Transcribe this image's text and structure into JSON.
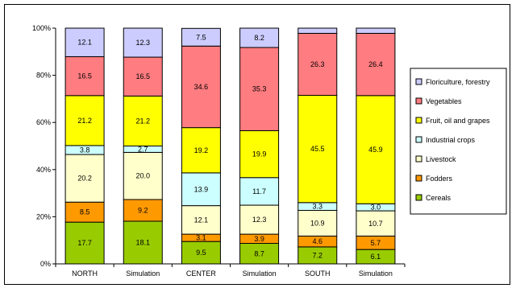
{
  "chart_data": {
    "type": "bar",
    "stacked": "percent",
    "categories": [
      "NORTH",
      "Simulation",
      "CENTER",
      "Simulation",
      "SOUTH",
      "Simulation"
    ],
    "series": [
      {
        "name": "Cereals",
        "color": "#99cc00",
        "values": [
          17.7,
          18.1,
          9.5,
          8.7,
          7.2,
          6.1
        ],
        "labels": [
          "17.7",
          "18.1",
          "9.5",
          "8.7",
          "7.2",
          "6.1"
        ]
      },
      {
        "name": "Fodders",
        "color": "#ff9900",
        "values": [
          8.5,
          9.2,
          3.1,
          3.9,
          4.6,
          5.7
        ],
        "labels": [
          "8.5",
          "9.2",
          "3.1",
          "3.9",
          "4.6",
          "5.7"
        ]
      },
      {
        "name": "Livestock",
        "color": "#ffffcc",
        "values": [
          20.2,
          20.0,
          12.1,
          12.3,
          10.9,
          10.7
        ],
        "labels": [
          "20.2",
          "20.0",
          "12.1",
          "12.3",
          "10.9",
          "10.7"
        ]
      },
      {
        "name": "Industrial crops",
        "color": "#ccffff",
        "values": [
          3.8,
          2.7,
          13.9,
          11.7,
          3.3,
          3.0
        ],
        "labels": [
          "3.8",
          "2.7",
          "13.9",
          "11.7",
          "3.3",
          "3.0"
        ]
      },
      {
        "name": "Fruit, oil and grapes",
        "color": "#ffff00",
        "values": [
          21.2,
          21.2,
          19.2,
          19.9,
          45.5,
          45.9
        ],
        "labels": [
          "21.2",
          "21.2",
          "19.2",
          "19.9",
          "45.5",
          "45.9"
        ]
      },
      {
        "name": "Vegetables",
        "color": "#ff7c80",
        "values": [
          16.5,
          16.5,
          34.6,
          35.3,
          26.3,
          26.4
        ],
        "labels": [
          "16.5",
          "16.5",
          "34.6",
          "35.3",
          "26.3",
          "26.4"
        ]
      },
      {
        "name": "Floriculture, forestry",
        "color": "#ccccff",
        "values": [
          12.1,
          12.3,
          7.5,
          8.2,
          2.2,
          2.2
        ],
        "labels": [
          "12.1",
          "12.3",
          "7.5",
          "8.2",
          "",
          ""
        ]
      }
    ],
    "y_ticks": [
      "0%",
      "20%",
      "40%",
      "60%",
      "80%",
      "100%"
    ],
    "ylim": [
      0,
      100
    ],
    "legend_position": "right",
    "legend_order": [
      "Floriculture, forestry",
      "Vegetables",
      "Fruit, oil and grapes",
      "Industrial crops",
      "Livestock",
      "Fodders",
      "Cereals"
    ],
    "grid": false
  }
}
